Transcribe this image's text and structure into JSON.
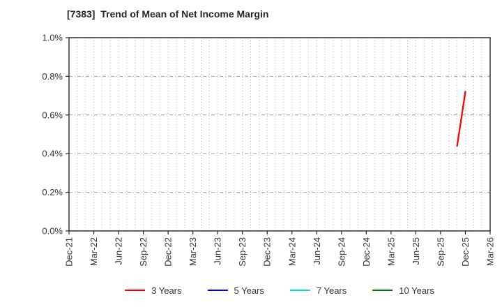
{
  "header": {
    "title": "[7383]  Trend of Mean of Net Income Margin"
  },
  "chart_data": {
    "type": "line",
    "title": "[7383]  Trend of Mean of Net Income Margin",
    "xlabel": "",
    "ylabel": "",
    "ylim": [
      0.0,
      1.0
    ],
    "y_ticks": [
      {
        "value": 0.0,
        "label": "0.0%"
      },
      {
        "value": 0.2,
        "label": "0.2%"
      },
      {
        "value": 0.4,
        "label": "0.4%"
      },
      {
        "value": 0.6,
        "label": "0.6%"
      },
      {
        "value": 0.8,
        "label": "0.8%"
      },
      {
        "value": 1.0,
        "label": "1.0%"
      }
    ],
    "x_tick_labels": [
      "Dec-21",
      "Mar-22",
      "Jun-22",
      "Sep-22",
      "Dec-22",
      "Mar-23",
      "Jun-23",
      "Sep-23",
      "Dec-23",
      "Mar-24",
      "Jun-24",
      "Sep-24",
      "Dec-24",
      "Mar-25",
      "Jun-25",
      "Sep-25",
      "Dec-25",
      "Mar-26"
    ],
    "x_axis": {
      "start": "Dec-21",
      "end": "Mar-26",
      "major_tick_interval_months": 3,
      "minor_grid_interval_months": 1
    },
    "grid": {
      "vertical": "dotted, monthly",
      "horizontal": "dashed, every 0.2%"
    },
    "series": [
      {
        "name": "3 Years",
        "color": "#ff0000",
        "points": [
          {
            "x": "Nov-25",
            "y": 0.44
          },
          {
            "x": "Dec-25",
            "y": 0.72
          }
        ]
      },
      {
        "name": "5 Years",
        "color": "#0000ff",
        "points": []
      },
      {
        "name": "7 Years",
        "color": "#00dcdc",
        "points": []
      },
      {
        "name": "10 Years",
        "color": "#008000",
        "points": []
      }
    ],
    "legend": {
      "position": "bottom",
      "entries": [
        {
          "label": "3 Years",
          "color": "#ff0000"
        },
        {
          "label": "5 Years",
          "color": "#0000ff"
        },
        {
          "label": "7 Years",
          "color": "#00dcdc"
        },
        {
          "label": "10 Years",
          "color": "#008000"
        }
      ]
    },
    "style": {
      "spine_color": "#262626",
      "tick_label_color": "#333333",
      "v_grid_color": "#b3b3b3",
      "h_grid_color": "#999999",
      "background": "#ffffff"
    }
  }
}
